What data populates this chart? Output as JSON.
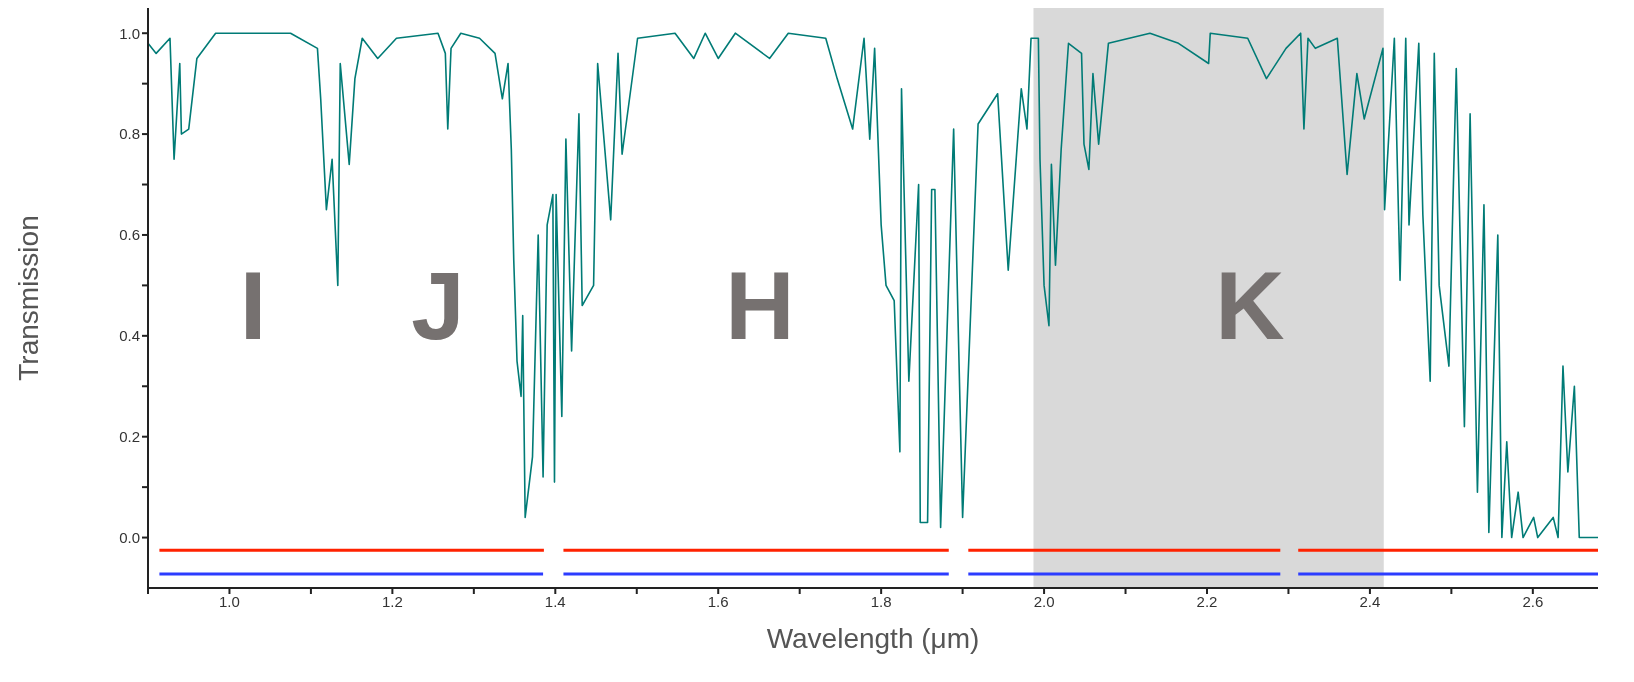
{
  "chart_data": {
    "type": "line",
    "xlabel": "Wavelength (μm)",
    "ylabel": "Transmission",
    "xlim": [
      0.9,
      2.68
    ],
    "ylim": [
      -0.1,
      1.05
    ],
    "xticks": [
      {
        "value": 0.9,
        "label": null
      },
      {
        "value": 1.0,
        "label": "1.0"
      },
      {
        "value": 1.1,
        "label": null
      },
      {
        "value": 1.2,
        "label": "1.2"
      },
      {
        "value": 1.3,
        "label": null
      },
      {
        "value": 1.4,
        "label": "1.4"
      },
      {
        "value": 1.5,
        "label": null
      },
      {
        "value": 1.6,
        "label": "1.6"
      },
      {
        "value": 1.7,
        "label": null
      },
      {
        "value": 1.8,
        "label": "1.8"
      },
      {
        "value": 1.9,
        "label": null
      },
      {
        "value": 2.0,
        "label": "2.0"
      },
      {
        "value": 2.1,
        "label": null
      },
      {
        "value": 2.2,
        "label": "2.2"
      },
      {
        "value": 2.3,
        "label": null
      },
      {
        "value": 2.4,
        "label": "2.4"
      },
      {
        "value": 2.5,
        "label": null
      },
      {
        "value": 2.6,
        "label": "2.6"
      }
    ],
    "yticks": [
      {
        "value": 0,
        "label": "0.0"
      },
      {
        "value": 0.1,
        "label": null
      },
      {
        "value": 0.2,
        "label": "0.2"
      },
      {
        "value": 0.3,
        "label": null
      },
      {
        "value": 0.4,
        "label": "0.4"
      },
      {
        "value": 0.5,
        "label": null
      },
      {
        "value": 0.6,
        "label": "0.6"
      },
      {
        "value": 0.7,
        "label": null
      },
      {
        "value": 0.8,
        "label": "0.8"
      },
      {
        "value": 0.9,
        "label": null
      },
      {
        "value": 1.0,
        "label": "1.0"
      }
    ],
    "bands": [
      {
        "axis": "x",
        "from": 1.987,
        "to": 2.417,
        "color": "#d9d9d9"
      }
    ],
    "annotations": [
      "I",
      "J",
      "H",
      "K"
    ],
    "series": [
      {
        "color": "#007b76",
        "x": [
          0.9,
          0.91,
          0.927,
          0.932,
          0.939,
          0.941,
          0.95,
          0.96,
          0.983,
          1.075,
          1.108,
          1.112,
          1.119,
          1.126,
          1.133,
          1.136,
          1.147,
          1.154,
          1.163,
          1.182,
          1.205,
          1.256,
          1.265,
          1.268,
          1.272,
          1.284,
          1.307,
          1.326,
          1.335,
          1.342,
          1.346,
          1.349,
          1.353,
          1.358,
          1.36,
          1.363,
          1.372,
          1.379,
          1.385,
          1.39,
          1.397,
          1.399,
          1.401,
          1.408,
          1.413,
          1.42,
          1.429,
          1.433,
          1.447,
          1.452,
          1.468,
          1.477,
          1.482,
          1.501,
          1.547,
          1.57,
          1.584,
          1.6,
          1.621,
          1.663,
          1.686,
          1.732,
          1.746,
          1.765,
          1.779,
          1.786,
          1.792,
          1.8,
          1.806,
          1.816,
          1.823,
          1.825,
          1.834,
          1.846,
          1.848,
          1.857,
          1.862,
          1.866,
          1.873,
          1.889,
          1.9,
          1.919,
          1.943,
          1.956,
          1.972,
          1.979,
          1.984,
          1.993,
          1.995,
          2.0,
          2.006,
          2.009,
          2.014,
          2.021,
          2.03,
          2.046,
          2.049,
          2.055,
          2.06,
          2.067,
          2.079,
          2.13,
          2.165,
          2.202,
          2.204,
          2.25,
          2.273,
          2.297,
          2.315,
          2.319,
          2.324,
          2.333,
          2.36,
          2.372,
          2.384,
          2.393,
          2.416,
          2.418,
          2.43,
          2.437,
          2.444,
          2.448,
          2.46,
          2.465,
          2.474,
          2.479,
          2.485,
          2.497,
          2.506,
          2.516,
          2.523,
          2.532,
          2.54,
          2.546,
          2.557,
          2.562,
          2.568,
          2.574,
          2.582,
          2.588,
          2.601,
          2.606,
          2.625,
          2.631,
          2.637,
          2.643,
          2.651,
          2.657,
          2.68
        ],
        "values": [
          0.98,
          0.96,
          0.99,
          0.75,
          0.94,
          0.8,
          0.81,
          0.95,
          1.0,
          1.0,
          0.97,
          0.87,
          0.65,
          0.75,
          0.5,
          0.94,
          0.74,
          0.91,
          0.99,
          0.95,
          0.99,
          1.0,
          0.96,
          0.81,
          0.97,
          1.0,
          0.99,
          0.96,
          0.87,
          0.94,
          0.77,
          0.55,
          0.35,
          0.28,
          0.44,
          0.04,
          0.16,
          0.6,
          0.12,
          0.62,
          0.68,
          0.11,
          0.68,
          0.24,
          0.79,
          0.37,
          0.84,
          0.46,
          0.5,
          0.94,
          0.63,
          0.96,
          0.76,
          0.99,
          1.0,
          0.95,
          1.0,
          0.95,
          1.0,
          0.95,
          1.0,
          0.99,
          0.91,
          0.81,
          0.99,
          0.79,
          0.97,
          0.62,
          0.5,
          0.47,
          0.17,
          0.89,
          0.31,
          0.7,
          0.03,
          0.03,
          0.69,
          0.69,
          0.02,
          0.81,
          0.04,
          0.82,
          0.88,
          0.53,
          0.89,
          0.81,
          0.99,
          0.99,
          0.75,
          0.5,
          0.42,
          0.74,
          0.54,
          0.77,
          0.98,
          0.96,
          0.78,
          0.73,
          0.92,
          0.78,
          0.98,
          1.0,
          0.98,
          0.94,
          1.0,
          0.99,
          0.91,
          0.97,
          1.0,
          0.81,
          0.99,
          0.97,
          0.99,
          0.72,
          0.92,
          0.83,
          0.97,
          0.65,
          0.99,
          0.51,
          0.99,
          0.62,
          0.98,
          0.64,
          0.31,
          0.96,
          0.5,
          0.34,
          0.93,
          0.22,
          0.84,
          0.09,
          0.66,
          0.01,
          0.6,
          0.0,
          0.19,
          0.0,
          0.09,
          0.0,
          0.04,
          0.0,
          0.04,
          0.0,
          0.34,
          0.13,
          0.3,
          0.0,
          0.0
        ]
      },
      {
        "color": "#ff2200",
        "x": [
          0.914,
          1.386,
          1.398,
          1.41,
          1.883,
          1.895,
          1.907,
          2.29,
          2.301,
          2.312,
          2.68
        ],
        "values": [
          -0.025,
          -0.025,
          null,
          -0.025,
          -0.025,
          null,
          -0.025,
          -0.025,
          null,
          -0.025,
          -0.025
        ]
      },
      {
        "color": "#2c3cff",
        "x": [
          0.914,
          1.385,
          1.398,
          1.41,
          1.883,
          1.895,
          1.907,
          2.29,
          2.301,
          2.312,
          2.68
        ],
        "values": [
          -0.072,
          -0.072,
          null,
          -0.072,
          -0.072,
          null,
          -0.072,
          -0.072,
          null,
          -0.072,
          -0.072
        ]
      }
    ]
  }
}
